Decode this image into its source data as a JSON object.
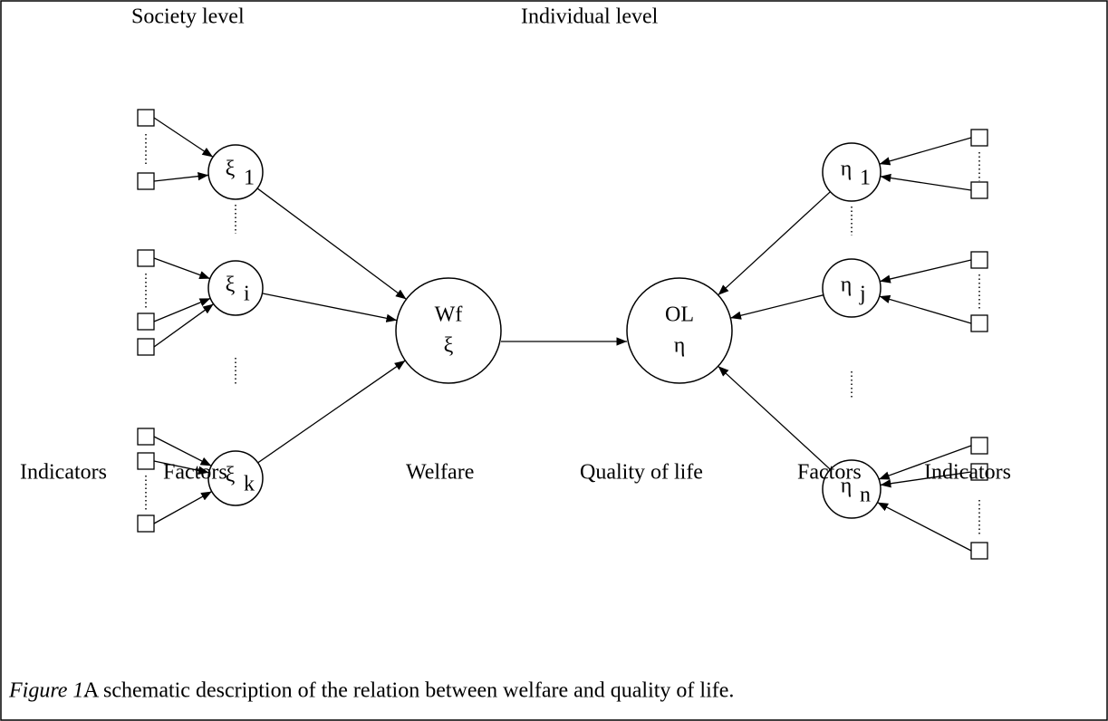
{
  "header": {
    "left": "Society level",
    "right": "Individual level"
  },
  "nodes": [
    {
      "symbol": "ξ",
      "subscript": "1"
    },
    {
      "symbol": "ξ",
      "subscript": "i"
    },
    {
      "symbol": "ξ",
      "subscript": "k"
    },
    {
      "label": "Wf",
      "symbol": "ξ"
    },
    {
      "label": "OL",
      "symbol": "η"
    },
    {
      "symbol": "η",
      "subscript": "1"
    },
    {
      "symbol": "η",
      "subscript": "j"
    },
    {
      "symbol": "η",
      "subscript": "n"
    }
  ],
  "footer_labels": [
    "Indicators",
    "Factors",
    "Welfare",
    "Quality of life",
    "Factors",
    "Indicators"
  ],
  "caption": {
    "label": "Figure 1.",
    "text": "A schematic description of the relation between welfare and quality of life."
  }
}
